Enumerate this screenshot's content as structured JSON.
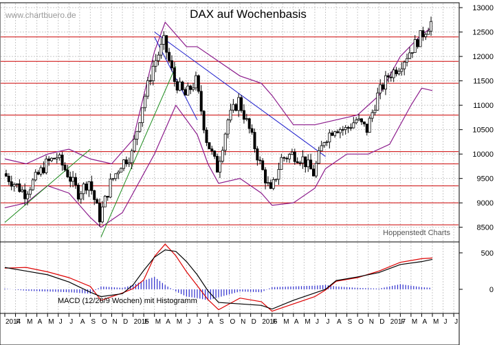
{
  "watermark": "www.chartbuero.de",
  "credit": "Hoppenstedt Charts",
  "colors": {
    "background": "#ffffff",
    "grid": "#c8c8c8",
    "price": "#000000",
    "bollinger": "#8b1a8b",
    "support_resistance": "#cc0000",
    "trend_down": "#1a1acc",
    "trend_up": "#1a8a1a",
    "macd_line": "#000000",
    "signal_line": "#dd0000",
    "histogram": "#2a2acc"
  },
  "chart_data": [
    {
      "type": "line",
      "title": "DAX auf Wochenbasis",
      "xlabel": "",
      "ylabel": "",
      "x_range": [
        "2014-01",
        "2017-07"
      ],
      "ylim": [
        8200,
        13100
      ],
      "y_ticks": [
        8500,
        9000,
        9500,
        10000,
        10500,
        11000,
        11500,
        12000,
        12500,
        13000
      ],
      "y_tick_labels": [
        "8500",
        "9000",
        "9500",
        "10000",
        "10500",
        "11000",
        "11500",
        "12000",
        "12500",
        "13000"
      ],
      "x_tick_labels": [
        "2014",
        "F",
        "M",
        "A",
        "M",
        "J",
        "J",
        "A",
        "S",
        "O",
        "N",
        "D",
        "2015",
        "F",
        "M",
        "A",
        "M",
        "J",
        "J",
        "A",
        "S",
        "O",
        "N",
        "D",
        "2016",
        "F",
        "M",
        "A",
        "M",
        "J",
        "J",
        "A",
        "S",
        "O",
        "N",
        "D",
        "2017",
        "F",
        "M",
        "A",
        "M",
        "J",
        "J"
      ],
      "grid": true,
      "series": [
        {
          "kind": "weekly-close",
          "points": [
            [
              "2014-01",
              9600
            ],
            [
              "2014-02",
              9400
            ],
            [
              "2014-03",
              9200
            ],
            [
              "2014-04",
              9500
            ],
            [
              "2014-05",
              9800
            ],
            [
              "2014-06",
              9950
            ],
            [
              "2014-07",
              9600
            ],
            [
              "2014-08",
              9200
            ],
            [
              "2014-09",
              9450
            ],
            [
              "2014-10",
              8700
            ],
            [
              "2014-11",
              9400
            ],
            [
              "2014-12",
              9800
            ],
            [
              "2015-01",
              10000
            ],
            [
              "2015-02",
              11000
            ],
            [
              "2015-03",
              11800
            ],
            [
              "2015-04",
              12300
            ],
            [
              "2015-05",
              11500
            ],
            [
              "2015-06",
              11200
            ],
            [
              "2015-07",
              11500
            ],
            [
              "2015-08",
              10300
            ],
            [
              "2015-09",
              9700
            ],
            [
              "2015-10",
              10700
            ],
            [
              "2015-11",
              11100
            ],
            [
              "2015-12",
              10500
            ],
            [
              "2016-01",
              9800
            ],
            [
              "2016-02",
              9200
            ],
            [
              "2016-03",
              9900
            ],
            [
              "2016-04",
              10000
            ],
            [
              "2016-05",
              9900
            ],
            [
              "2016-06",
              9600
            ],
            [
              "2016-07",
              10300
            ],
            [
              "2016-08",
              10550
            ],
            [
              "2016-09",
              10500
            ],
            [
              "2016-10",
              10700
            ],
            [
              "2016-11",
              10500
            ],
            [
              "2016-12",
              11200
            ],
            [
              "2017-01",
              11600
            ],
            [
              "2017-02",
              11800
            ],
            [
              "2017-03",
              12100
            ],
            [
              "2017-04",
              12400
            ],
            [
              "2017-05",
              12700
            ]
          ]
        },
        {
          "kind": "bollinger-upper",
          "points": [
            [
              "2014-01",
              9900
            ],
            [
              "2014-03",
              9800
            ],
            [
              "2014-05",
              10000
            ],
            [
              "2014-07",
              10100
            ],
            [
              "2014-09",
              9900
            ],
            [
              "2014-11",
              9800
            ],
            [
              "2015-01",
              10300
            ],
            [
              "2015-03",
              12100
            ],
            [
              "2015-04",
              12700
            ],
            [
              "2015-06",
              12200
            ],
            [
              "2015-07",
              12200
            ],
            [
              "2015-09",
              11900
            ],
            [
              "2015-11",
              11600
            ],
            [
              "2016-01",
              11450
            ],
            [
              "2016-02",
              11200
            ],
            [
              "2016-04",
              10600
            ],
            [
              "2016-06",
              10600
            ],
            [
              "2016-08",
              10700
            ],
            [
              "2016-10",
              10800
            ],
            [
              "2016-12",
              11200
            ],
            [
              "2017-02",
              12000
            ],
            [
              "2017-04",
              12450
            ],
            [
              "2017-05",
              12600
            ]
          ]
        },
        {
          "kind": "bollinger-lower",
          "points": [
            [
              "2014-01",
              8900
            ],
            [
              "2014-03",
              9000
            ],
            [
              "2014-05",
              9350
            ],
            [
              "2014-07",
              9200
            ],
            [
              "2014-09",
              8700
            ],
            [
              "2014-10",
              8500
            ],
            [
              "2014-12",
              8800
            ],
            [
              "2015-01",
              9200
            ],
            [
              "2015-03",
              10000
            ],
            [
              "2015-05",
              11000
            ],
            [
              "2015-07",
              10400
            ],
            [
              "2015-08",
              9800
            ],
            [
              "2015-09",
              9400
            ],
            [
              "2015-11",
              9500
            ],
            [
              "2016-01",
              9200
            ],
            [
              "2016-02",
              8950
            ],
            [
              "2016-04",
              9000
            ],
            [
              "2016-06",
              9300
            ],
            [
              "2016-07",
              9700
            ],
            [
              "2016-09",
              10000
            ],
            [
              "2016-11",
              10000
            ],
            [
              "2017-01",
              10200
            ],
            [
              "2017-03",
              11000
            ],
            [
              "2017-04",
              11350
            ],
            [
              "2017-05",
              11300
            ]
          ]
        },
        {
          "kind": "horizontal-levels",
          "values": [
            8550,
            9000,
            9350,
            9800,
            10050,
            10800,
            11450,
            11900,
            12400
          ]
        },
        {
          "kind": "trendline-down",
          "points": [
            [
              "2015-03",
              12500
            ],
            [
              "2016-07",
              9950
            ]
          ]
        },
        {
          "kind": "trendline-down-short",
          "points": [
            [
              "2015-03",
              12400
            ],
            [
              "2015-07",
              10700
            ]
          ]
        },
        {
          "kind": "trendline-up",
          "points": [
            [
              "2014-01",
              8600
            ],
            [
              "2014-09",
              10100
            ]
          ]
        },
        {
          "kind": "trendline-up-steep",
          "points": [
            [
              "2014-10",
              8300
            ],
            [
              "2015-05",
              11800
            ]
          ]
        }
      ]
    },
    {
      "type": "line",
      "title": "MACD (12/26/9 Wochen) mit Histogramm",
      "xlabel": "",
      "ylabel": "",
      "ylim": [
        -330,
        650
      ],
      "y_ticks": [
        0,
        500
      ],
      "y_tick_labels": [
        "0",
        "500"
      ],
      "series": [
        {
          "kind": "macd",
          "points": [
            [
              "2014-01",
              300
            ],
            [
              "2014-03",
              250
            ],
            [
              "2014-05",
              200
            ],
            [
              "2014-07",
              100
            ],
            [
              "2014-09",
              -40
            ],
            [
              "2014-10",
              -100
            ],
            [
              "2014-12",
              -60
            ],
            [
              "2015-01",
              60
            ],
            [
              "2015-02",
              260
            ],
            [
              "2015-03",
              440
            ],
            [
              "2015-04",
              540
            ],
            [
              "2015-05",
              520
            ],
            [
              "2015-06",
              380
            ],
            [
              "2015-07",
              200
            ],
            [
              "2015-08",
              -20
            ],
            [
              "2015-09",
              -180
            ],
            [
              "2015-11",
              -200
            ],
            [
              "2016-01",
              -220
            ],
            [
              "2016-02",
              -270
            ],
            [
              "2016-04",
              -150
            ],
            [
              "2016-06",
              -50
            ],
            [
              "2016-07",
              0
            ],
            [
              "2016-08",
              120
            ],
            [
              "2016-10",
              170
            ],
            [
              "2016-12",
              230
            ],
            [
              "2017-02",
              340
            ],
            [
              "2017-04",
              380
            ],
            [
              "2017-05",
              410
            ]
          ]
        },
        {
          "kind": "signal",
          "points": [
            [
              "2014-01",
              290
            ],
            [
              "2014-03",
              300
            ],
            [
              "2014-05",
              240
            ],
            [
              "2014-07",
              160
            ],
            [
              "2014-09",
              40
            ],
            [
              "2014-10",
              -150
            ],
            [
              "2014-12",
              -50
            ],
            [
              "2015-01",
              10
            ],
            [
              "2015-02",
              130
            ],
            [
              "2015-03",
              450
            ],
            [
              "2015-04",
              620
            ],
            [
              "2015-05",
              460
            ],
            [
              "2015-06",
              240
            ],
            [
              "2015-07",
              50
            ],
            [
              "2015-08",
              -140
            ],
            [
              "2015-09",
              -280
            ],
            [
              "2015-11",
              -120
            ],
            [
              "2016-01",
              -170
            ],
            [
              "2016-02",
              -300
            ],
            [
              "2016-04",
              -200
            ],
            [
              "2016-06",
              -100
            ],
            [
              "2016-07",
              -10
            ],
            [
              "2016-08",
              110
            ],
            [
              "2016-10",
              160
            ],
            [
              "2016-12",
              250
            ],
            [
              "2017-02",
              370
            ],
            [
              "2017-04",
              420
            ],
            [
              "2017-05",
              430
            ]
          ]
        },
        {
          "kind": "histogram",
          "points": [
            [
              "2014-01",
              10
            ],
            [
              "2014-03",
              -20
            ],
            [
              "2014-05",
              -30
            ],
            [
              "2014-07",
              -40
            ],
            [
              "2014-09",
              -60
            ],
            [
              "2014-10",
              40
            ],
            [
              "2014-12",
              20
            ],
            [
              "2015-01",
              60
            ],
            [
              "2015-02",
              120
            ],
            [
              "2015-03",
              170
            ],
            [
              "2015-04",
              60
            ],
            [
              "2015-05",
              -30
            ],
            [
              "2015-06",
              -100
            ],
            [
              "2015-07",
              -120
            ],
            [
              "2015-08",
              -150
            ],
            [
              "2015-09",
              -110
            ],
            [
              "2015-11",
              -30
            ],
            [
              "2016-01",
              -40
            ],
            [
              "2016-02",
              30
            ],
            [
              "2016-04",
              40
            ],
            [
              "2016-06",
              50
            ],
            [
              "2016-07",
              60
            ],
            [
              "2016-08",
              40
            ],
            [
              "2016-10",
              20
            ],
            [
              "2016-12",
              10
            ],
            [
              "2017-02",
              70
            ],
            [
              "2017-04",
              30
            ],
            [
              "2017-05",
              20
            ]
          ]
        }
      ]
    }
  ]
}
